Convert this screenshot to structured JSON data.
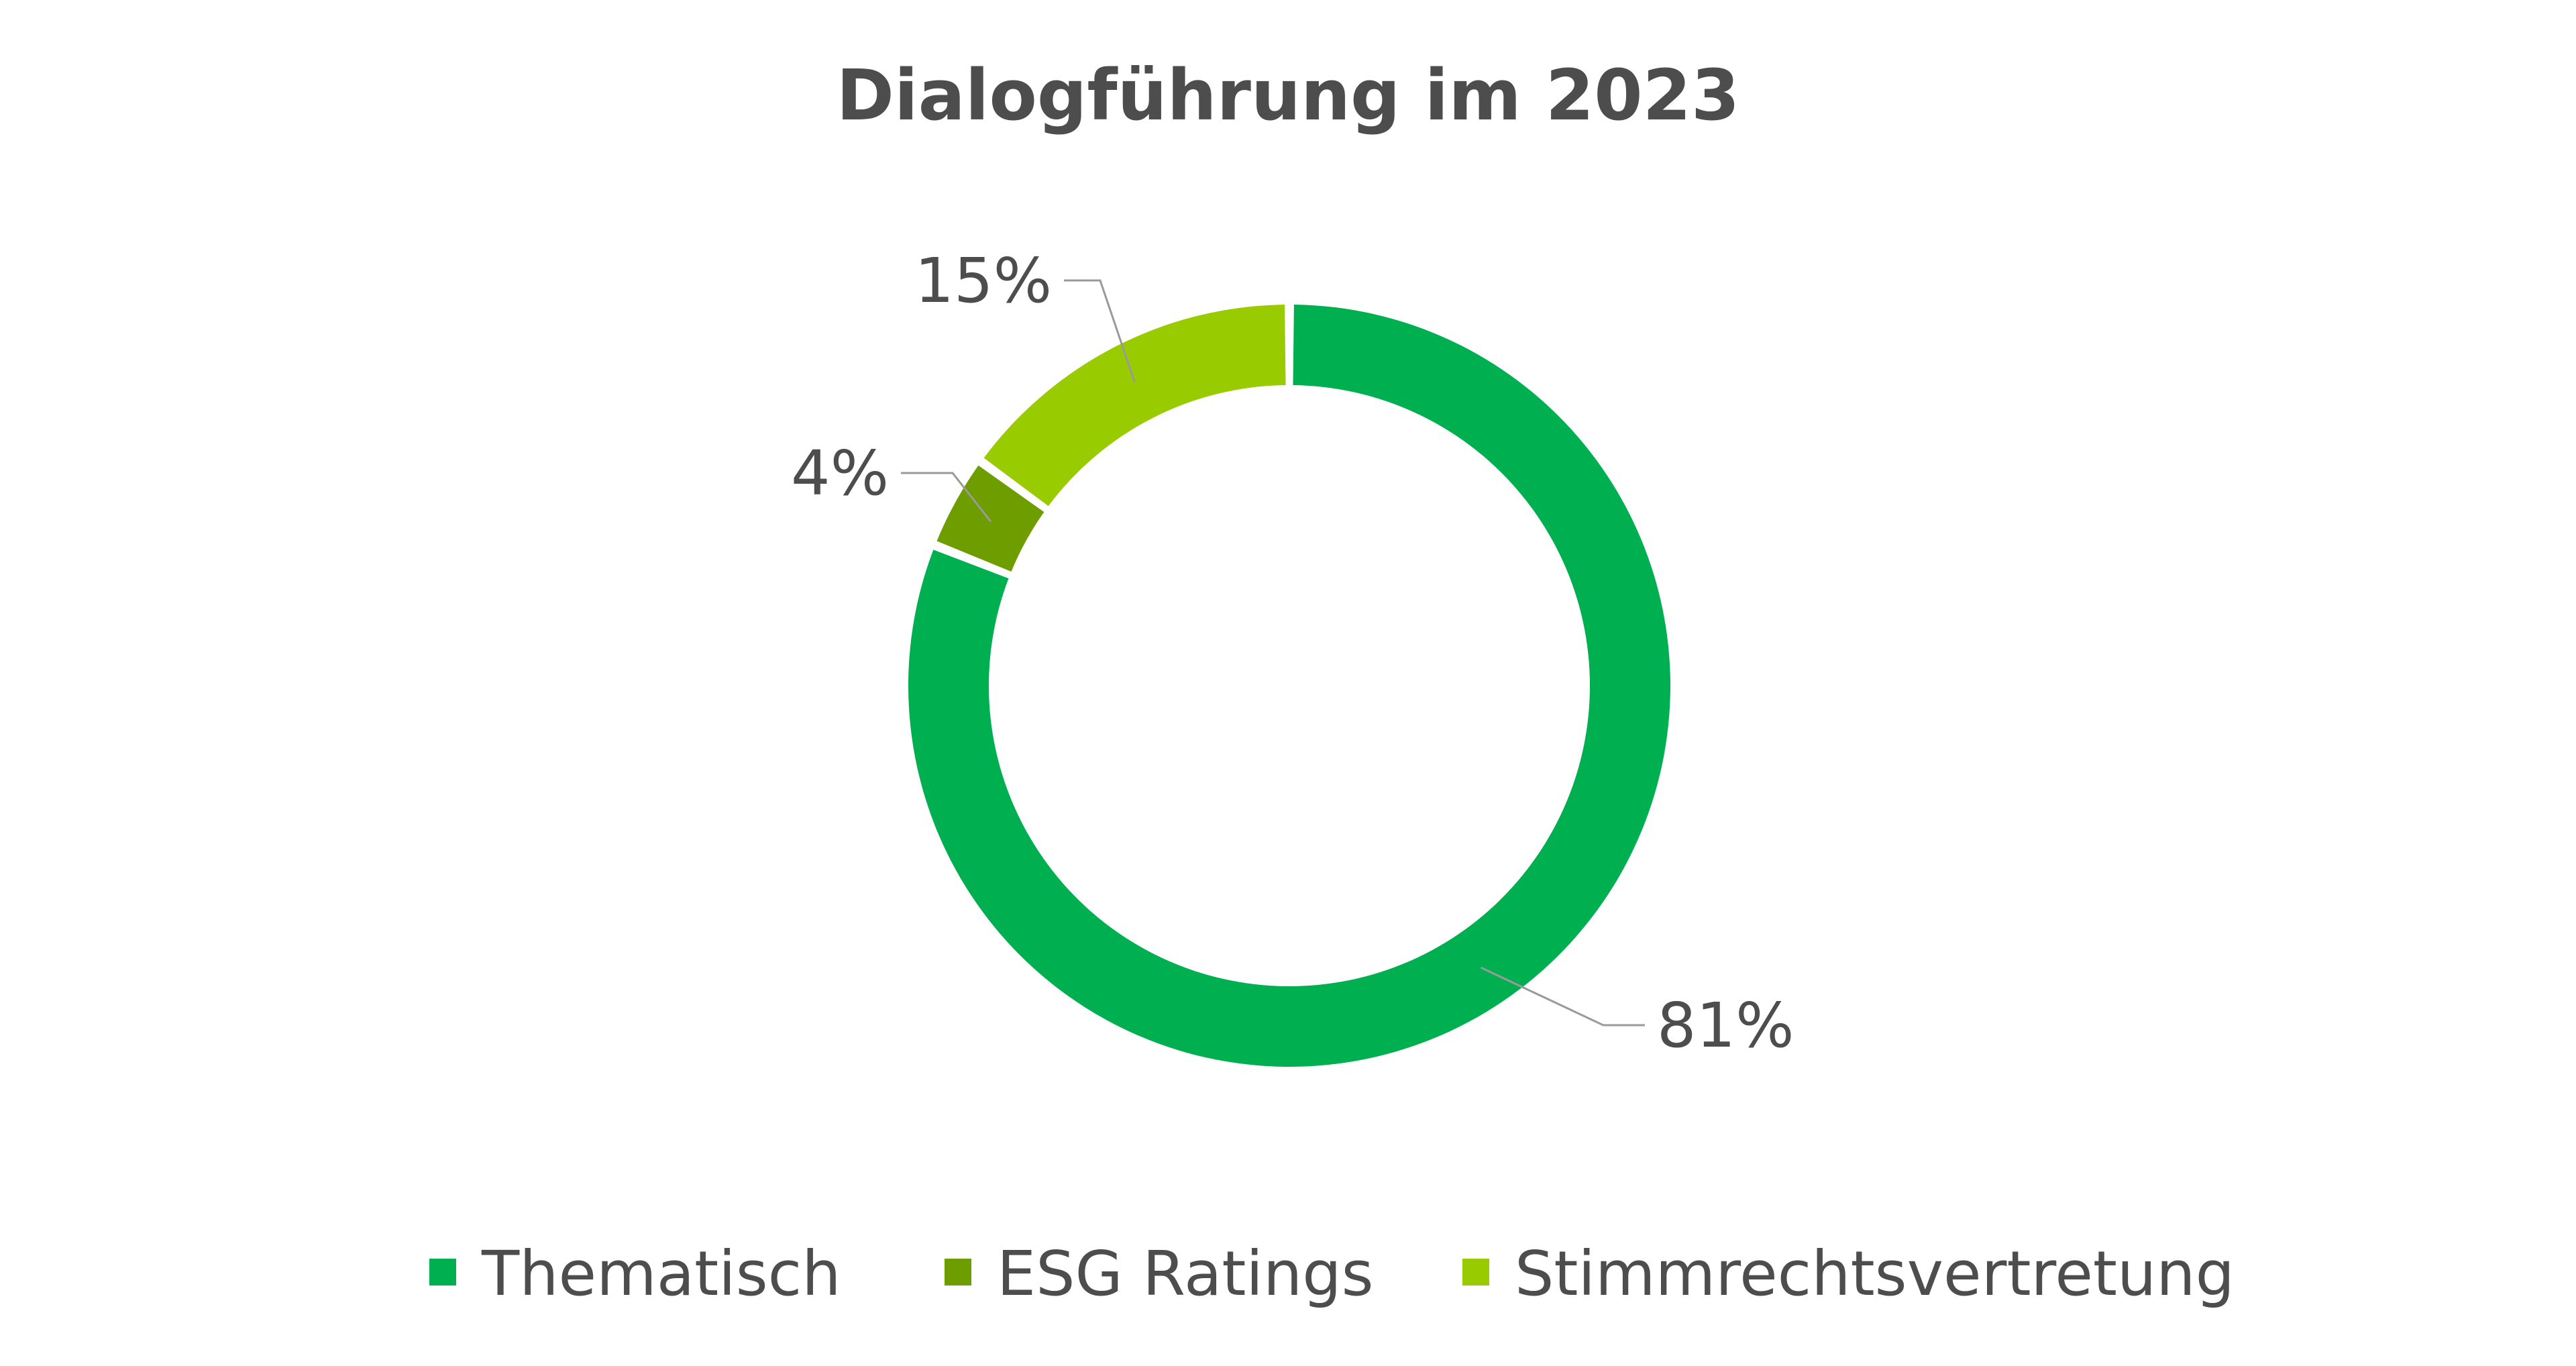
{
  "chart_data": {
    "type": "pie",
    "title": "Dialogführung im 2023",
    "donut": true,
    "legend_position": "bottom",
    "unit": "%",
    "slices": [
      {
        "name": "Thematisch",
        "value": 81,
        "label": "81%",
        "color": "#00b050"
      },
      {
        "name": "ESG Ratings",
        "value": 4,
        "label": "4%",
        "color": "#6e9d00"
      },
      {
        "name": "Stimmrechtsvertretung",
        "value": 15,
        "label": "15%",
        "color": "#99cc00"
      }
    ]
  }
}
